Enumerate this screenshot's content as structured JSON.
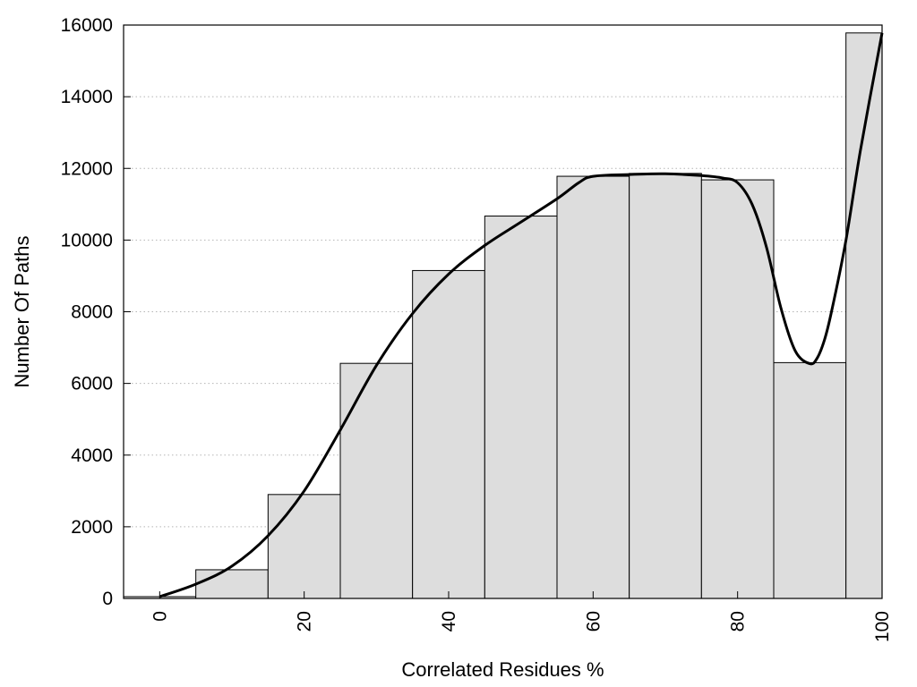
{
  "chart_data": {
    "type": "bar",
    "title": "",
    "xlabel": "Correlated Residues %",
    "ylabel": "Number Of Paths",
    "xlim": [
      -5,
      100
    ],
    "ylim": [
      0,
      16000
    ],
    "x_ticks": [
      "0",
      "20",
      "40",
      "60",
      "80",
      "100"
    ],
    "y_ticks": [
      "0",
      "2000",
      "4000",
      "6000",
      "8000",
      "10000",
      "12000",
      "14000",
      "16000"
    ],
    "grid": "horizontal dotted",
    "bar_color": "#dddddd",
    "bin_width": 10,
    "bars": [
      {
        "x": 0,
        "value": 50
      },
      {
        "x": 10,
        "value": 800
      },
      {
        "x": 20,
        "value": 2900
      },
      {
        "x": 30,
        "value": 6560
      },
      {
        "x": 40,
        "value": 9150
      },
      {
        "x": 50,
        "value": 10670
      },
      {
        "x": 60,
        "value": 11780
      },
      {
        "x": 70,
        "value": 11860
      },
      {
        "x": 80,
        "value": 11680
      },
      {
        "x": 90,
        "value": 6580
      },
      {
        "x": 100,
        "value": 15780
      }
    ],
    "curve": {
      "type": "line",
      "x": [
        0,
        5,
        10,
        15,
        20,
        25,
        30,
        35,
        40,
        45,
        50,
        55,
        58,
        60,
        65,
        70,
        75,
        78,
        80,
        82,
        84,
        86,
        88,
        90,
        91,
        92,
        93,
        95,
        97,
        100
      ],
      "y": [
        50,
        400,
        900,
        1750,
        3000,
        4700,
        6500,
        7950,
        9050,
        9850,
        10500,
        11150,
        11600,
        11780,
        11830,
        11850,
        11800,
        11730,
        11600,
        11000,
        9800,
        8100,
        6900,
        6550,
        6700,
        7200,
        8000,
        10000,
        12500,
        15780
      ]
    }
  }
}
